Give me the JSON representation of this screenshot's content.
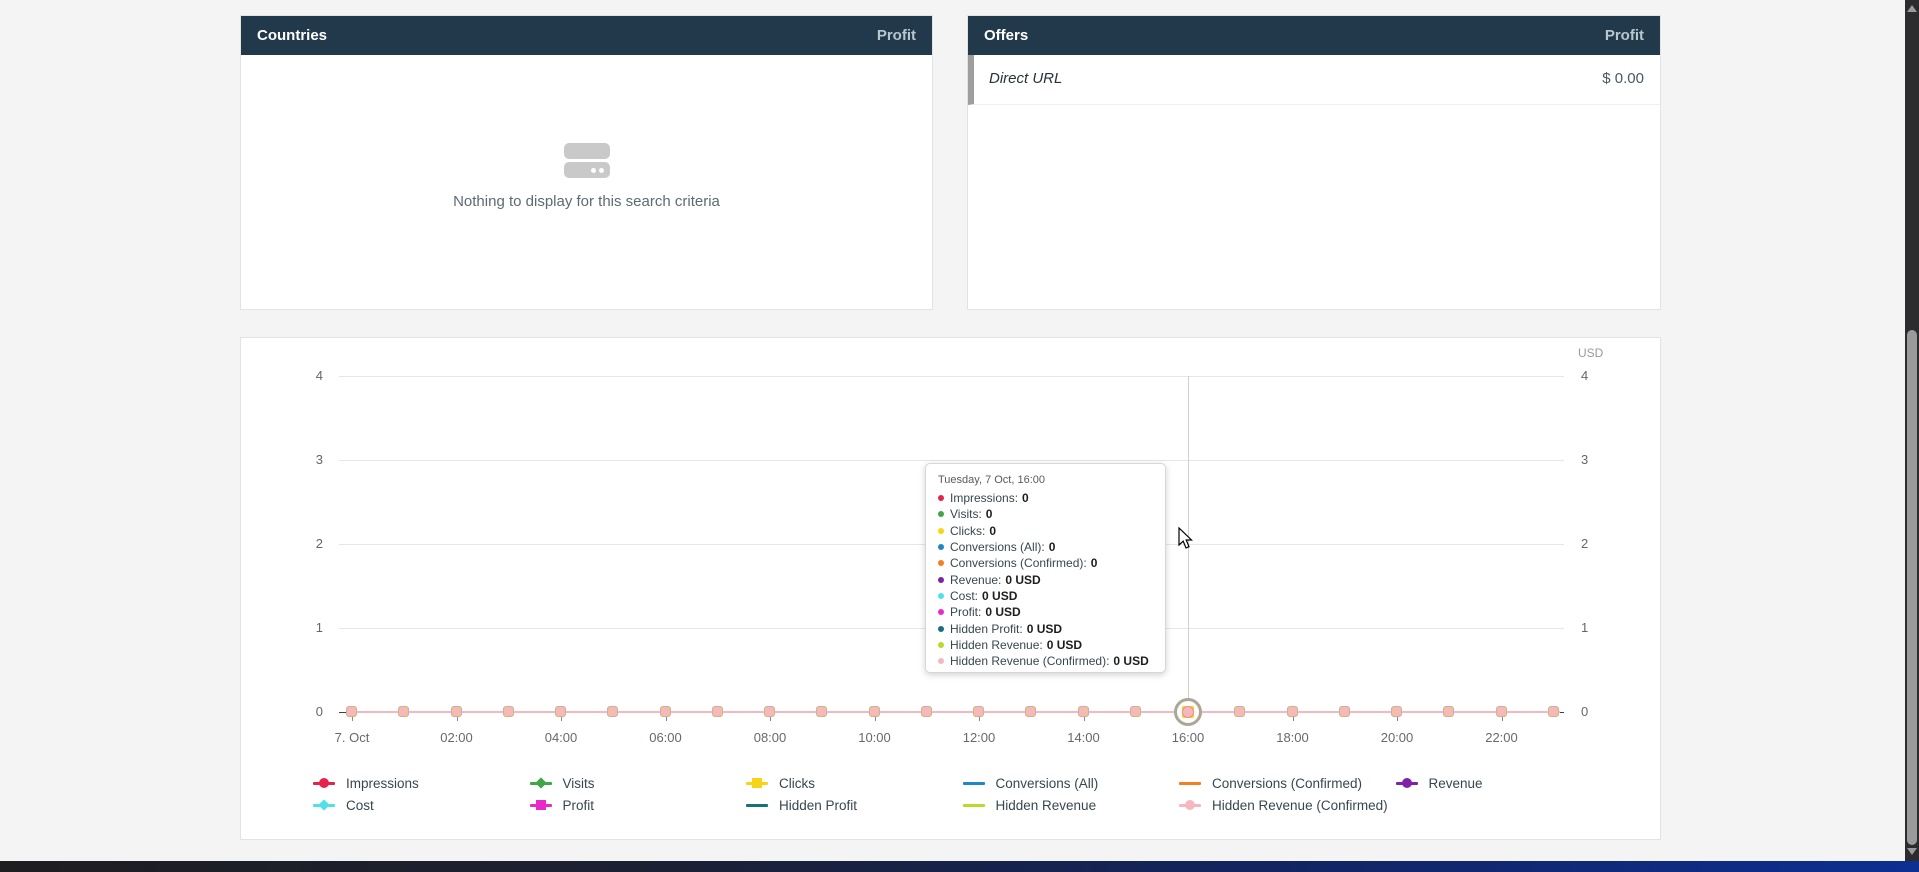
{
  "colors": {
    "panel_header_bg": "#21394a",
    "panel_header_metric_text": "#b9c6ce",
    "offer_accent_bar": "#9e9e9e",
    "page_background": "#f4f4f5"
  },
  "panels": {
    "countries": {
      "title": "Countries",
      "metric": "Profit",
      "empty_text": "Nothing to display for this search criteria"
    },
    "offers": {
      "title": "Offers",
      "metric": "Profit",
      "rows": [
        {
          "name": "Direct URL",
          "value": "$ 0.00"
        }
      ]
    }
  },
  "chart_data": {
    "type": "line",
    "unit_label": "USD",
    "ylim": [
      0,
      4
    ],
    "y_ticks": [
      0,
      1,
      2,
      3,
      4
    ],
    "x_tick_labels": [
      "7. Oct",
      "02:00",
      "04:00",
      "06:00",
      "08:00",
      "10:00",
      "12:00",
      "14:00",
      "16:00",
      "18:00",
      "20:00",
      "22:00"
    ],
    "num_points": 24,
    "grid": true,
    "legend_position": "bottom",
    "hover": {
      "index": 16,
      "label": "Tuesday, 7 Oct, 16:00"
    },
    "series": [
      {
        "name": "Impressions",
        "color": "#e5244d",
        "marker": "circle",
        "values": [
          0,
          0,
          0,
          0,
          0,
          0,
          0,
          0,
          0,
          0,
          0,
          0,
          0,
          0,
          0,
          0,
          0,
          0,
          0,
          0,
          0,
          0,
          0,
          0
        ]
      },
      {
        "name": "Visits",
        "color": "#3fa745",
        "marker": "diamond",
        "values": [
          0,
          0,
          0,
          0,
          0,
          0,
          0,
          0,
          0,
          0,
          0,
          0,
          0,
          0,
          0,
          0,
          0,
          0,
          0,
          0,
          0,
          0,
          0,
          0
        ]
      },
      {
        "name": "Clicks",
        "color": "#f6d418",
        "marker": "square",
        "values": [
          0,
          0,
          0,
          0,
          0,
          0,
          0,
          0,
          0,
          0,
          0,
          0,
          0,
          0,
          0,
          0,
          0,
          0,
          0,
          0,
          0,
          0,
          0,
          0
        ]
      },
      {
        "name": "Conversions (All)",
        "color": "#1e88c7",
        "marker": "triangle-up",
        "values": [
          0,
          0,
          0,
          0,
          0,
          0,
          0,
          0,
          0,
          0,
          0,
          0,
          0,
          0,
          0,
          0,
          0,
          0,
          0,
          0,
          0,
          0,
          0,
          0
        ]
      },
      {
        "name": "Conversions (Confirmed)",
        "color": "#f57d23",
        "marker": "triangle-down",
        "values": [
          0,
          0,
          0,
          0,
          0,
          0,
          0,
          0,
          0,
          0,
          0,
          0,
          0,
          0,
          0,
          0,
          0,
          0,
          0,
          0,
          0,
          0,
          0,
          0
        ]
      },
      {
        "name": "Revenue",
        "color": "#7e22a8",
        "marker": "circle",
        "values": [
          0,
          0,
          0,
          0,
          0,
          0,
          0,
          0,
          0,
          0,
          0,
          0,
          0,
          0,
          0,
          0,
          0,
          0,
          0,
          0,
          0,
          0,
          0,
          0
        ]
      },
      {
        "name": "Cost",
        "color": "#4fe0e8",
        "marker": "diamond",
        "values": [
          0,
          0,
          0,
          0,
          0,
          0,
          0,
          0,
          0,
          0,
          0,
          0,
          0,
          0,
          0,
          0,
          0,
          0,
          0,
          0,
          0,
          0,
          0,
          0
        ]
      },
      {
        "name": "Profit",
        "color": "#e92aca",
        "marker": "square",
        "values": [
          0,
          0,
          0,
          0,
          0,
          0,
          0,
          0,
          0,
          0,
          0,
          0,
          0,
          0,
          0,
          0,
          0,
          0,
          0,
          0,
          0,
          0,
          0,
          0
        ]
      },
      {
        "name": "Hidden Profit",
        "color": "#18707d",
        "marker": "triangle-up",
        "values": [
          0,
          0,
          0,
          0,
          0,
          0,
          0,
          0,
          0,
          0,
          0,
          0,
          0,
          0,
          0,
          0,
          0,
          0,
          0,
          0,
          0,
          0,
          0,
          0
        ]
      },
      {
        "name": "Hidden Revenue",
        "color": "#b4dc28",
        "marker": "triangle-down",
        "values": [
          0,
          0,
          0,
          0,
          0,
          0,
          0,
          0,
          0,
          0,
          0,
          0,
          0,
          0,
          0,
          0,
          0,
          0,
          0,
          0,
          0,
          0,
          0,
          0
        ]
      },
      {
        "name": "Hidden Revenue (Confirmed)",
        "color": "#f6b8bf",
        "marker": "circle",
        "values": [
          0,
          0,
          0,
          0,
          0,
          0,
          0,
          0,
          0,
          0,
          0,
          0,
          0,
          0,
          0,
          0,
          0,
          0,
          0,
          0,
          0,
          0,
          0,
          0
        ]
      }
    ],
    "legend": {
      "rows": [
        [
          0,
          1,
          2,
          3,
          4,
          5
        ],
        [
          6,
          7,
          8,
          9,
          10
        ]
      ]
    },
    "tooltip": {
      "title": "Tuesday, 7 Oct, 16:00",
      "rows": [
        {
          "label": "Impressions",
          "value": "0",
          "color": "#e5244d"
        },
        {
          "label": "Visits",
          "value": "0",
          "color": "#3fa745"
        },
        {
          "label": "Clicks",
          "value": "0",
          "color": "#f6d418"
        },
        {
          "label": "Conversions (All)",
          "value": "0",
          "color": "#1e88c7"
        },
        {
          "label": "Conversions (Confirmed)",
          "value": "0",
          "color": "#f57d23"
        },
        {
          "label": "Revenue",
          "value": "0 USD",
          "color": "#7e22a8"
        },
        {
          "label": "Cost",
          "value": "0 USD",
          "color": "#4fe0e8"
        },
        {
          "label": "Profit",
          "value": "0 USD",
          "color": "#e92aca"
        },
        {
          "label": "Hidden Profit",
          "value": "0 USD",
          "color": "#18707d"
        },
        {
          "label": "Hidden Revenue",
          "value": "0 USD",
          "color": "#b4dc28"
        },
        {
          "label": "Hidden Revenue (Confirmed)",
          "value": "0 USD",
          "color": "#f6b8bf"
        }
      ]
    }
  }
}
